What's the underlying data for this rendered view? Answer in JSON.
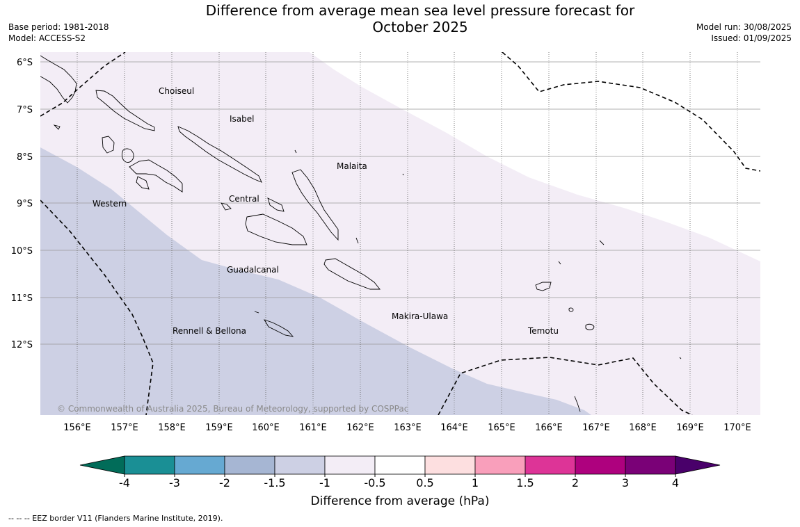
{
  "title_line1": "Difference from average mean sea level pressure forecast for",
  "title_line2": "October 2025",
  "base_period": "Base period: 1981-2018",
  "model": "Model: ACCESS-S2",
  "model_run": "Model run: 30/08/2025",
  "issued": "Issued: 01/09/2025",
  "copyright": "© Commonwealth of Australia 2025, Bureau of Meteorology, supported by COSPPac",
  "lat_ticks": [
    "6°S",
    "7°S",
    "8°S",
    "9°S",
    "10°S",
    "11°S",
    "12°S"
  ],
  "lon_ticks": [
    "156°E",
    "157°E",
    "158°E",
    "159°E",
    "160°E",
    "161°E",
    "162°E",
    "163°E",
    "164°E",
    "165°E",
    "166°E",
    "167°E",
    "168°E",
    "169°E",
    "170°E"
  ],
  "regions": [
    "Choiseul",
    "Isabel",
    "Malaita",
    "Western",
    "Central",
    "Guadalcanal",
    "Makira-Ulawa",
    "Rennell & Bellona",
    "Temotu"
  ],
  "colorbar": {
    "label": "Difference from average (hPa)",
    "ticks": [
      "-4",
      "-3",
      "-2",
      "-1.5",
      "-1",
      "-0.5",
      "0.5",
      "1",
      "1.5",
      "2",
      "3",
      "4"
    ],
    "colors": [
      "#1a8f95",
      "#66a9d2",
      "#a6b6d3",
      "#cdd0e4",
      "#f3edf6",
      "#ffffff",
      "#fddfe0",
      "#f99fbb",
      "#dd3497",
      "#ae017e",
      "#7a0177"
    ],
    "under_color": "#016c59",
    "over_color": "#49006a"
  },
  "legend_note": "--  --  -- EEZ border V11 (Flanders Marine Institute, 2019)."
}
